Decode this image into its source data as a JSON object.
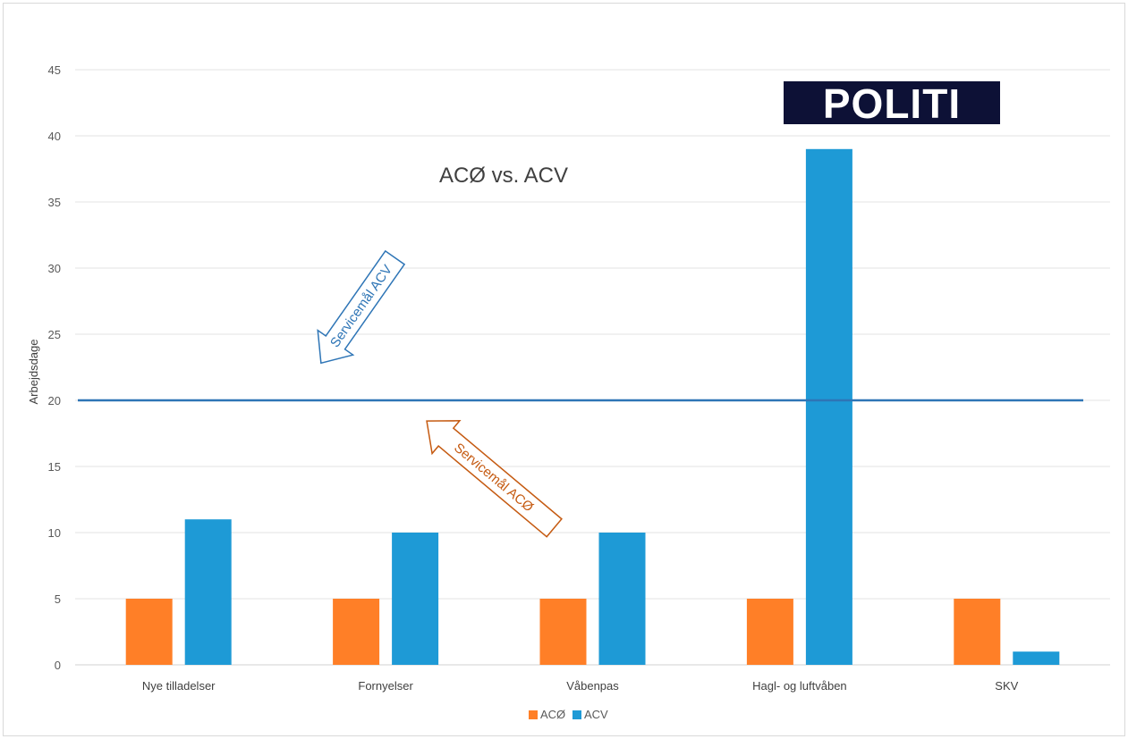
{
  "chart_data": {
    "type": "bar",
    "title": "ACØ vs. ACV",
    "xlabel": "",
    "ylabel": "Arbejdsdage",
    "ylim": [
      0,
      45
    ],
    "yticks": [
      0,
      5,
      10,
      15,
      20,
      25,
      30,
      35,
      40,
      45
    ],
    "categories": [
      "Nye tilladelser",
      "Fornyelser",
      "Våbenpas",
      "Hagl- og luftvåben",
      "SKV"
    ],
    "series": [
      {
        "name": "ACØ",
        "values": [
          5,
          5,
          5,
          5,
          5
        ],
        "color": "#ff7f27"
      },
      {
        "name": "ACV",
        "values": [
          11,
          10,
          10,
          39,
          1
        ],
        "color": "#1e9ad6"
      }
    ],
    "reference_line": {
      "value": 20,
      "color": "#2e75b6"
    },
    "annotations": [
      {
        "text": "Servicemål ACV",
        "color": "#2e75b6"
      },
      {
        "text": "Servicemål ACØ",
        "color": "#c55a11"
      }
    ],
    "grid": true,
    "legend": "bottom-center"
  },
  "logo": {
    "text": "POLITI",
    "background": "#0d1136",
    "foreground": "#ffffff"
  }
}
